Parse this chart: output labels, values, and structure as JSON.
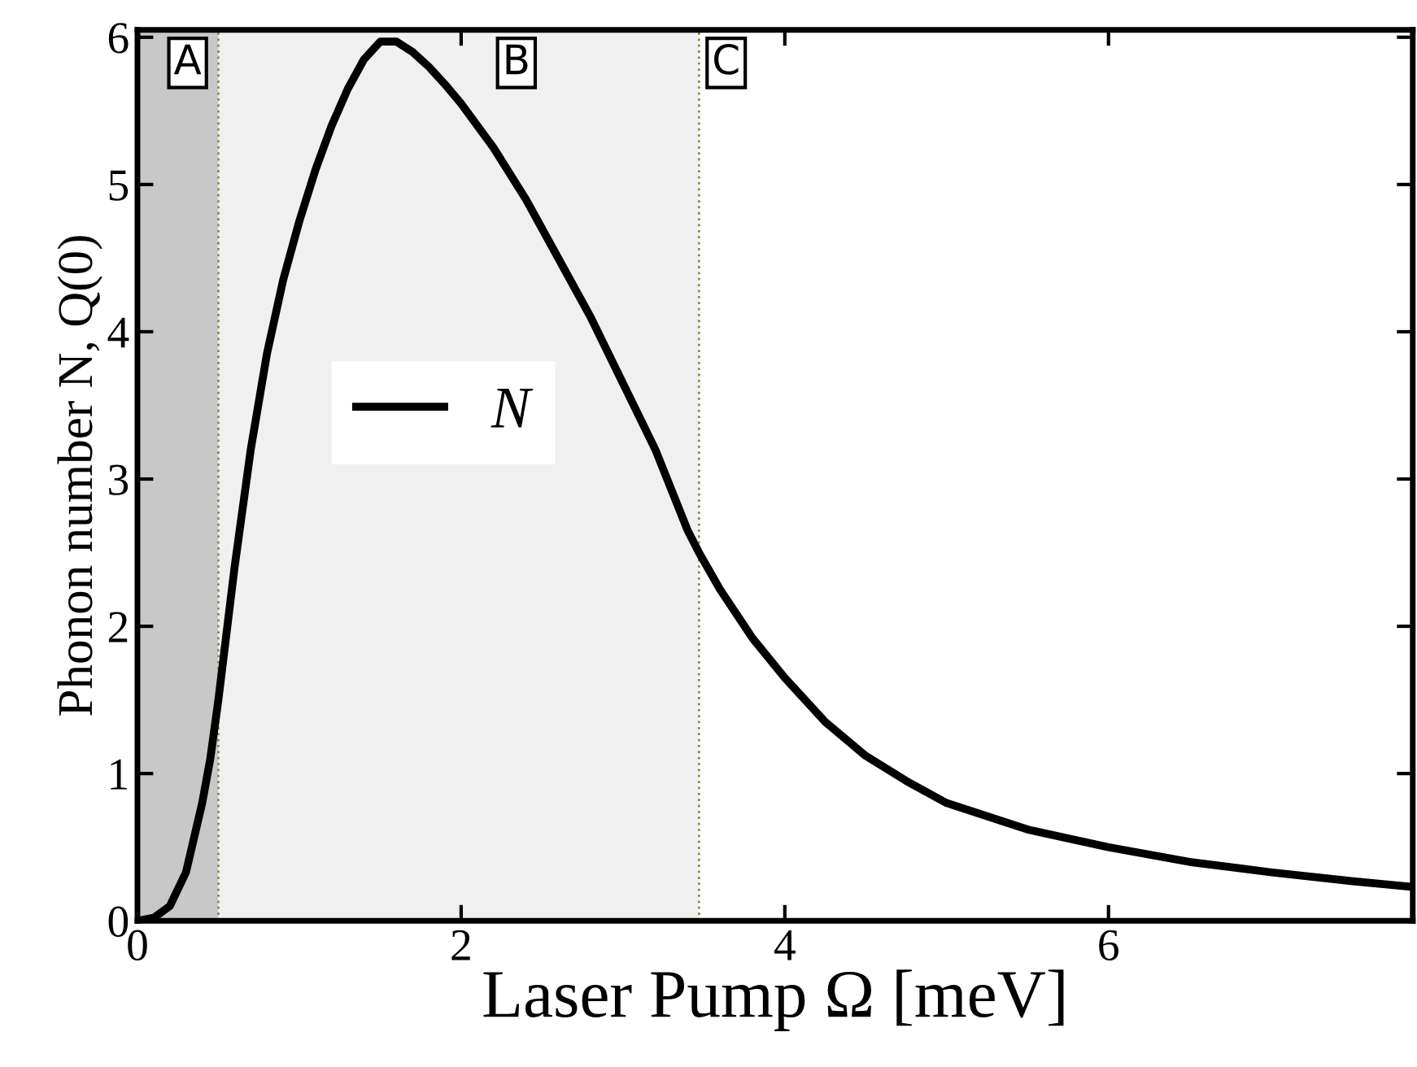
{
  "chart_data": {
    "type": "line",
    "xlabel": "Laser Pump Ω [meV]",
    "ylabel": "Phonon number N, Q(0)",
    "x": [
      0,
      0.1,
      0.2,
      0.3,
      0.4,
      0.45,
      0.5,
      0.55,
      0.6,
      0.7,
      0.8,
      0.9,
      1.0,
      1.1,
      1.2,
      1.3,
      1.4,
      1.5,
      1.6,
      1.7,
      1.8,
      1.9,
      2.0,
      2.2,
      2.4,
      2.6,
      2.8,
      3.0,
      3.2,
      3.4,
      3.47,
      3.6,
      3.8,
      4.0,
      4.25,
      4.5,
      4.75,
      5.0,
      5.5,
      6.0,
      6.5,
      7.0,
      7.5,
      7.88
    ],
    "series": [
      {
        "name": "N",
        "color": "#000000",
        "values": [
          0,
          0.02,
          0.1,
          0.33,
          0.8,
          1.1,
          1.5,
          1.95,
          2.4,
          3.2,
          3.85,
          4.35,
          4.75,
          5.1,
          5.4,
          5.65,
          5.85,
          5.97,
          5.97,
          5.9,
          5.8,
          5.68,
          5.55,
          5.25,
          4.9,
          4.5,
          4.1,
          3.65,
          3.2,
          2.65,
          2.5,
          2.25,
          1.92,
          1.65,
          1.35,
          1.12,
          0.95,
          0.8,
          0.62,
          0.5,
          0.4,
          0.33,
          0.27,
          0.23
        ]
      }
    ],
    "bands": [
      {
        "axis": "x",
        "from": 0,
        "to": 0.5,
        "label": "A",
        "color": "#c8c8c8"
      },
      {
        "axis": "x",
        "from": 0.5,
        "to": 3.47,
        "label": "B",
        "color": "#f0f0f0"
      }
    ],
    "ref_lines": [
      {
        "axis": "x",
        "value": 0.5,
        "color": "#8a8a50",
        "line_style": "dotted"
      },
      {
        "axis": "x",
        "value": 3.47,
        "color": "#8a8a50",
        "line_style": "dotted",
        "label": "C"
      }
    ],
    "xlim": [
      0,
      7.88
    ],
    "ylim": [
      0,
      6.05
    ],
    "xticks": [
      0,
      2,
      4,
      6
    ],
    "yticks": [
      0,
      1,
      2,
      3,
      4,
      5,
      6
    ],
    "grid": false,
    "legend": "left",
    "marker": "none",
    "line_style": "solid"
  }
}
